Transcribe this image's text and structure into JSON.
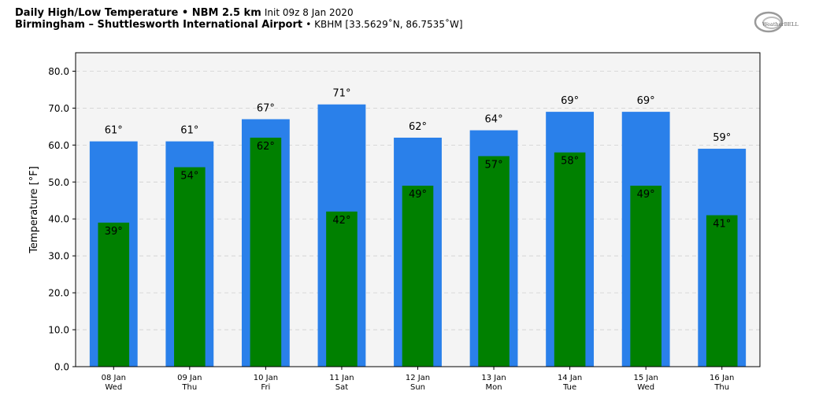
{
  "header": {
    "line1_bold": "Daily High/Low Temperature • NBM 2.5 km",
    "line1_light": "Init 09z 8 Jan 2020",
    "line2_bold": "Birmingham – Shuttlesworth International Airport",
    "line2_light": "• KBHM [33.5629˚N, 86.7535˚W]"
  },
  "logo": {
    "text": "WeatherBELL",
    "icon": "weatherbell-swirl-logo"
  },
  "chart_data": {
    "type": "bar",
    "categories": [
      "08 Jan",
      "09 Jan",
      "10 Jan",
      "11 Jan",
      "12 Jan",
      "13 Jan",
      "14 Jan",
      "15 Jan",
      "16 Jan"
    ],
    "weekdays": [
      "Wed",
      "Thu",
      "Fri",
      "Sat",
      "Sun",
      "Mon",
      "Tue",
      "Wed",
      "Thu"
    ],
    "series": [
      {
        "key": "high",
        "color": "#2a80ea",
        "values": [
          61,
          61,
          67,
          71,
          62,
          64,
          69,
          69,
          59
        ]
      },
      {
        "key": "low",
        "color": "#008000",
        "values": [
          39,
          54,
          62,
          42,
          49,
          57,
          58,
          49,
          41
        ]
      }
    ],
    "ylabel": "Temperature [°F]",
    "xlabel": "",
    "ylim": [
      0,
      85
    ],
    "yticks": [
      0,
      10,
      20,
      30,
      40,
      50,
      60,
      70,
      80
    ],
    "grid": true,
    "plot_background": "#f4f4f4",
    "label_suffix": "°"
  }
}
